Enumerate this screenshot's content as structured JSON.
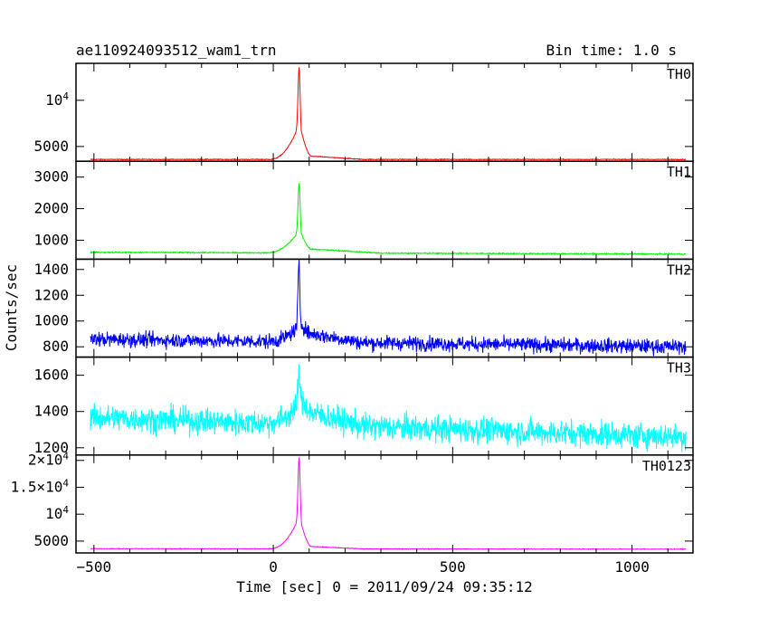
{
  "header": {
    "title": "ae110924093512_wam1_trn",
    "bin_time": "Bin time: 1.0 s"
  },
  "ylabel": "Counts/sec",
  "xlabel": "Time [sec] 0 = 2011/09/24 09:35:12",
  "chart_data": {
    "type": "line",
    "x_range": [
      -550,
      1170
    ],
    "x_ticks": [
      {
        "value": -500,
        "label": "−500"
      },
      {
        "value": 0,
        "label": "0"
      },
      {
        "value": 500,
        "label": "500"
      },
      {
        "value": 1000,
        "label": "1000"
      }
    ],
    "series": [
      {
        "name": "TH0",
        "color": "#ff0000",
        "ylim": [
          3400,
          14000
        ],
        "y_ticks": [
          {
            "value": 5000,
            "label": "5000"
          },
          {
            "value": 10000,
            "label": "10^4"
          }
        ],
        "baseline": 3600,
        "baseline_end": 3600,
        "noise": 60,
        "peak_t": 72,
        "peak_v": 13600,
        "shoulder_v": 7400,
        "rise_start": -10,
        "fall_end": 105,
        "tail_v": 3950,
        "tail_end": 250
      },
      {
        "name": "TH1",
        "color": "#00ee00",
        "ylim": [
          400,
          3500
        ],
        "y_ticks": [
          {
            "value": 1000,
            "label": "1000"
          },
          {
            "value": 2000,
            "label": "2000"
          },
          {
            "value": 3000,
            "label": "3000"
          }
        ],
        "baseline": 620,
        "baseline_end": 560,
        "noise": 25,
        "peak_t": 72,
        "peak_v": 2800,
        "shoulder_v": 1300,
        "rise_start": -20,
        "fall_end": 105,
        "tail_v": 720,
        "tail_end": 300
      },
      {
        "name": "TH2",
        "color": "#0000ff",
        "ylim": [
          720,
          1480
        ],
        "y_ticks": [
          {
            "value": 800,
            "label": "800"
          },
          {
            "value": 1000,
            "label": "1000"
          },
          {
            "value": 1200,
            "label": "1200"
          },
          {
            "value": 1400,
            "label": "1400"
          }
        ],
        "baseline": 860,
        "baseline_end": 800,
        "noise": 80,
        "peak_t": 72,
        "peak_v": 1440,
        "shoulder_v": 960,
        "rise_start": -20,
        "fall_end": 105,
        "tail_v": 900,
        "tail_end": 250
      },
      {
        "name": "TH3",
        "color": "#00ffff",
        "ylim": [
          1160,
          1700
        ],
        "y_ticks": [
          {
            "value": 1200,
            "label": "1200"
          },
          {
            "value": 1400,
            "label": "1400"
          },
          {
            "value": 1600,
            "label": "1600"
          }
        ],
        "baseline": 1370,
        "baseline_end": 1260,
        "noise": 100,
        "peak_t": 72,
        "peak_v": 1650,
        "shoulder_v": 1440,
        "rise_start": -30,
        "fall_end": 110,
        "tail_v": 1390,
        "tail_end": 250
      },
      {
        "name": "TH0123",
        "color": "#ff00ff",
        "ylim": [
          2800,
          21000
        ],
        "y_ticks": [
          {
            "value": 5000,
            "label": "5000"
          },
          {
            "value": 10000,
            "label": "10^4"
          },
          {
            "value": 15000,
            "label": "1.5×10^4"
          },
          {
            "value": 20000,
            "label": "2×10^4"
          }
        ],
        "baseline": 3600,
        "baseline_end": 3500,
        "noise": 80,
        "peak_t": 72,
        "peak_v": 20500,
        "shoulder_v": 9500,
        "rise_start": -10,
        "fall_end": 105,
        "tail_v": 4000,
        "tail_end": 250
      }
    ]
  }
}
